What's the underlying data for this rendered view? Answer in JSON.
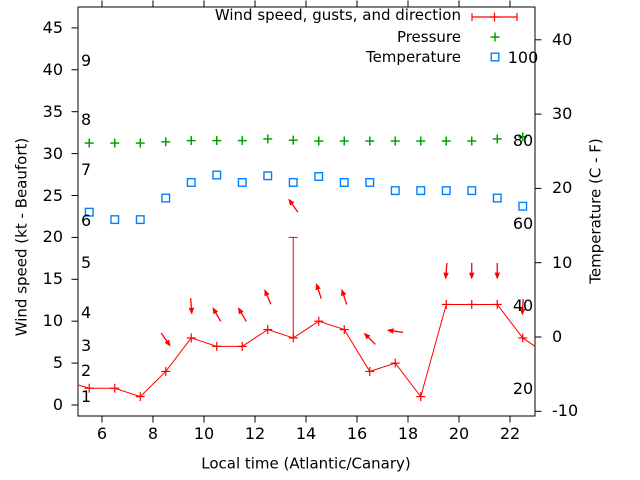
{
  "chart_data": {
    "type": "line",
    "title": "",
    "x_label": "Local time (Atlantic/Canary)",
    "x_ticks": [
      6,
      8,
      10,
      12,
      14,
      16,
      18,
      20,
      22
    ],
    "x_range": [
      5.06,
      22.98
    ],
    "grid": false,
    "legend_position": "top-right-inside",
    "left_axis": {
      "label": "Wind speed (kt - Beaufort)",
      "ticks": [
        0,
        5,
        10,
        15,
        20,
        25,
        30,
        35,
        40,
        45
      ],
      "range": [
        -1.3,
        47.6
      ],
      "beaufort_scale_labels": [
        {
          "beaufort": "1",
          "kt": 1
        },
        {
          "beaufort": "2",
          "kt": 4
        },
        {
          "beaufort": "3",
          "kt": 7
        },
        {
          "beaufort": "4",
          "kt": 11
        },
        {
          "beaufort": "5",
          "kt": 17
        },
        {
          "beaufort": "6",
          "kt": 22
        },
        {
          "beaufort": "7",
          "kt": 28
        },
        {
          "beaufort": "8",
          "kt": 34
        },
        {
          "beaufort": "9",
          "kt": 41
        }
      ]
    },
    "right_axis": {
      "label": "Temperature (C - F)",
      "ticks": [
        -10,
        0,
        10,
        20,
        30,
        40
      ],
      "range": [
        -11.4,
        43.8
      ]
    },
    "inner_right_scale": {
      "labels": [
        "100",
        "80",
        "60",
        "40",
        "20"
      ],
      "values": [
        100,
        80,
        60,
        40,
        20
      ]
    },
    "colors": {
      "wind": "#ff0000",
      "pressure": "#00a400",
      "temperature": "#0080ff",
      "axis": "#000000"
    },
    "series": [
      {
        "name": "Wind speed, gusts, and direction",
        "type": "line+points+errorbars+vectors",
        "marker": "plus",
        "color": "#ff0000",
        "axis": "left",
        "x": [
          5.5,
          6.5,
          7.5,
          8.5,
          9.5,
          10.5,
          11.5,
          12.5,
          13.5,
          14.5,
          15.5,
          16.5,
          17.5,
          18.5,
          19.5,
          20.5,
          21.5,
          22.5
        ],
        "values_kt": [
          2,
          2,
          1,
          4,
          8,
          7,
          7,
          9,
          8,
          10,
          9,
          4,
          5,
          1,
          12,
          12,
          12,
          8
        ],
        "edge_start": {
          "t": 5.06,
          "kt": 2.4
        },
        "edge_end": {
          "t": 22.98,
          "kt": 7
        },
        "gusts": [
          {
            "t": 13.5,
            "from_kt": 8,
            "to_kt": 20
          }
        ],
        "direction_arrows": [
          {
            "t": 8.5,
            "kt": 7.8,
            "angle_deg": 145
          },
          {
            "t": 9.5,
            "kt": 11.8,
            "angle_deg": 176
          },
          {
            "t": 10.5,
            "kt": 10.8,
            "angle_deg": 330
          },
          {
            "t": 11.5,
            "kt": 10.8,
            "angle_deg": 330
          },
          {
            "t": 12.5,
            "kt": 12.9,
            "angle_deg": 337
          },
          {
            "t": 13.5,
            "kt": 23.8,
            "angle_deg": 325
          },
          {
            "t": 14.5,
            "kt": 13.6,
            "angle_deg": 342
          },
          {
            "t": 15.5,
            "kt": 12.9,
            "angle_deg": 342
          },
          {
            "t": 16.5,
            "kt": 7.9,
            "angle_deg": 315
          },
          {
            "t": 17.5,
            "kt": 8.8,
            "angle_deg": 278
          },
          {
            "t": 19.5,
            "kt": 16.0,
            "angle_deg": 185
          },
          {
            "t": 20.5,
            "kt": 16.0,
            "angle_deg": 180
          },
          {
            "t": 21.5,
            "kt": 16.0,
            "angle_deg": 180
          },
          {
            "t": 22.5,
            "kt": 11.7,
            "angle_deg": 183
          }
        ]
      },
      {
        "name": "Pressure",
        "type": "points",
        "marker": "plus",
        "color": "#00a400",
        "axis": "inner_right_scale",
        "x": [
          5.5,
          6.5,
          7.5,
          8.5,
          9.5,
          10.5,
          11.5,
          12.5,
          13.5,
          14.5,
          15.5,
          16.5,
          17.5,
          18.5,
          19.5,
          20.5,
          21.5,
          22.5
        ],
        "values": [
          79.5,
          79.5,
          79.5,
          79.8,
          80.1,
          80.1,
          80.1,
          80.5,
          80.2,
          80.0,
          80.0,
          80.0,
          80.0,
          80.0,
          80.0,
          80.0,
          80.5,
          81.0
        ]
      },
      {
        "name": "Temperature",
        "type": "points",
        "marker": "open-square",
        "color": "#0080ff",
        "axis": "right",
        "x": [
          5.5,
          6.5,
          7.5,
          8.5,
          9.5,
          10.5,
          11.5,
          12.5,
          13.5,
          14.5,
          15.5,
          16.5,
          17.5,
          18.5,
          19.5,
          20.5,
          21.5,
          22.5
        ],
        "values_c": [
          16.8,
          15.8,
          15.8,
          18.7,
          20.8,
          21.8,
          20.8,
          21.7,
          20.8,
          21.6,
          20.8,
          20.8,
          19.7,
          19.7,
          19.7,
          19.7,
          18.7,
          17.6
        ]
      }
    ]
  }
}
